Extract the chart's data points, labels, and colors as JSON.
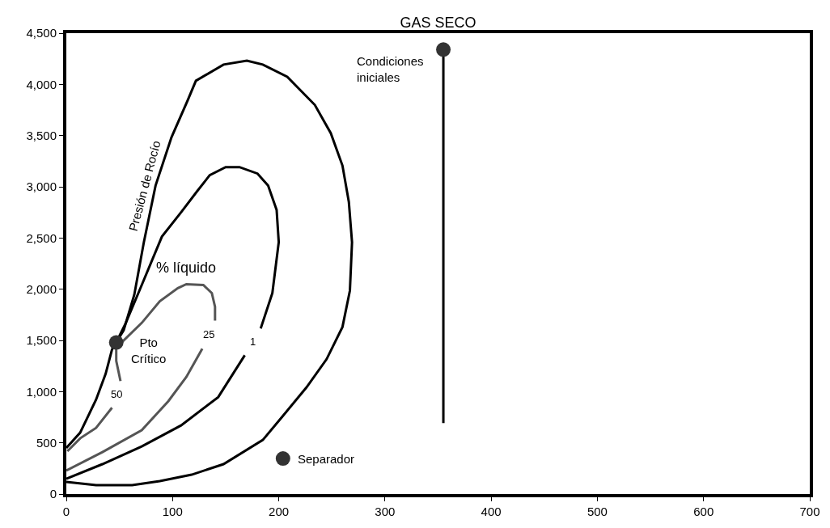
{
  "chart_data": {
    "type": "line",
    "title": "GAS SECO",
    "xlim": [
      0,
      700
    ],
    "ylim": [
      0,
      4500
    ],
    "xticks": [
      0,
      100,
      200,
      300,
      400,
      500,
      600,
      700
    ],
    "yticks": [
      {
        "value": 0,
        "label": "0"
      },
      {
        "value": 500,
        "label": "500"
      },
      {
        "value": 1000,
        "label": "1,000"
      },
      {
        "value": 1500,
        "label": "1,500"
      },
      {
        "value": 2000,
        "label": "2,000"
      },
      {
        "value": 2500,
        "label": "2,500"
      },
      {
        "value": 3000,
        "label": "3,000"
      },
      {
        "value": 3500,
        "label": "3,500"
      },
      {
        "value": 4000,
        "label": "4,000"
      },
      {
        "value": 4500,
        "label": "4,500"
      }
    ],
    "legend": false,
    "marker": "none",
    "line_style": "solid",
    "series": [
      {
        "name": "Presión de Rocío",
        "color": "#000000",
        "x": [
          0,
          28,
          62,
          88,
          118,
          148,
          185,
          204,
          226,
          245,
          260,
          267,
          269,
          266,
          260,
          249,
          234,
          208,
          185,
          170,
          148,
          122,
          114,
          99,
          84,
          73,
          64,
          54,
          47,
          43,
          37,
          28,
          13,
          0
        ],
        "values": [
          118,
          87,
          87,
          126,
          189,
          292,
          528,
          764,
          1040,
          1316,
          1631,
          1986,
          2459,
          2853,
          3207,
          3523,
          3799,
          4074,
          4193,
          4232,
          4193,
          4035,
          3838,
          3483,
          3011,
          2459,
          1946,
          1600,
          1480,
          1411,
          1174,
          922,
          599,
          450
        ]
      },
      {
        "color": "#000000",
        "x": [
          0,
          34,
          71,
          108,
          143,
          168,
          176,
          183,
          194,
          200,
          198,
          190,
          180,
          163,
          150,
          135,
          123,
          108,
          90,
          71,
          56,
          47
        ],
        "values": [
          150,
          292,
          465,
          670,
          946,
          1355,
          null,
          1616,
          1962,
          2459,
          2774,
          3011,
          3129,
          3192,
          3192,
          3113,
          2955,
          2750,
          2514,
          2041,
          1671,
          1480
        ]
      },
      {
        "color": "#555555",
        "x": [
          0,
          34,
          71,
          96,
          113,
          128,
          134,
          140,
          140,
          137,
          129,
          113,
          105,
          88,
          71,
          53,
          47
        ],
        "values": [
          229,
          410,
          623,
          906,
          1143,
          1419,
          null,
          1694,
          1828,
          1962,
          2041,
          2049,
          2010,
          1883,
          1671,
          1489,
          1480
        ]
      },
      {
        "color": "#555555",
        "x": [
          1,
          13,
          28,
          43,
          47,
          51,
          47,
          47
        ],
        "values": [
          418,
          544,
          646,
          843,
          null,
          1103,
          1300,
          1480
        ]
      },
      {
        "type": "line",
        "color": "#000000",
        "x": [
          355,
          355
        ],
        "values": [
          693,
          4334
        ]
      },
      {
        "type": "scatter",
        "marker": "circle",
        "color": "#333333",
        "x": [
          47,
          204,
          355
        ],
        "values": [
          1480,
          347,
          4340
        ]
      }
    ],
    "annotations": [
      {
        "text": "Condiciones\niniciales",
        "x": 355,
        "y": 4340
      },
      {
        "text": "Separador",
        "x": 204,
        "y": 347
      },
      {
        "text": "Pto\nCrítico",
        "x": 47,
        "y": 1480
      },
      {
        "text": "% líquido",
        "x": 113,
        "y": 2049
      },
      {
        "text": "1",
        "x": 168,
        "y": 1355
      },
      {
        "text": "25",
        "x": 128,
        "y": 1419
      },
      {
        "text": "50",
        "x": 43,
        "y": 843
      }
    ]
  }
}
